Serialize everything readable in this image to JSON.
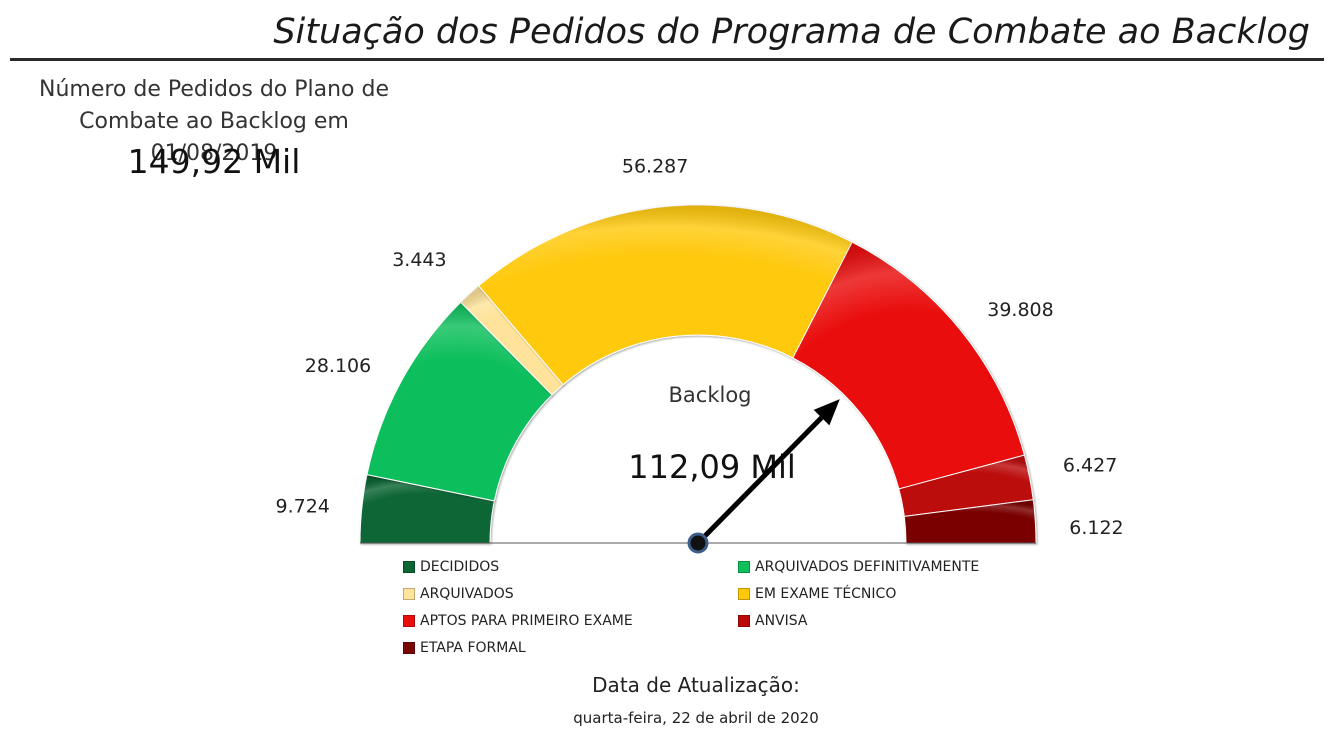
{
  "header": {
    "title": "Situação dos Pedidos do Programa de Combate ao Backlog"
  },
  "kpi": {
    "label": "Número de Pedidos do Plano de Combate ao Backlog em 01/08/2019",
    "value": "149,92 Mil"
  },
  "footer": {
    "label": "Data de Atualização:",
    "date": "quarta-feira, 22 de abril de 2020"
  },
  "chart_data": {
    "type": "gauge",
    "title": "Backlog",
    "center_value": "112,09 Mil",
    "needle_value": 112.09,
    "max_value": 149.92,
    "segments": [
      {
        "name": "DECIDIDOS",
        "label": "9.724",
        "value": 9.724,
        "color": "#0b6634"
      },
      {
        "name": "ARQUIVADOS DEFINITIVAMENTE",
        "label": "28.106",
        "value": 28.106,
        "color": "#0ebf5c"
      },
      {
        "name": "ARQUIVADOS",
        "label": "3.443",
        "value": 3.443,
        "color": "#ffe39a"
      },
      {
        "name": "EM EXAME TÉCNICO",
        "label": "56.287",
        "value": 56.287,
        "color": "#ffc90a"
      },
      {
        "name": "APTOS PARA PRIMEIRO EXAME",
        "label": "39.808",
        "value": 39.808,
        "color": "#ea0d0d"
      },
      {
        "name": "ANVISA",
        "label": "6.427",
        "value": 6.427,
        "color": "#bc0a0a"
      },
      {
        "name": "ETAPA FORMAL",
        "label": "6.122",
        "value": 6.122,
        "color": "#7a0606"
      }
    ]
  }
}
